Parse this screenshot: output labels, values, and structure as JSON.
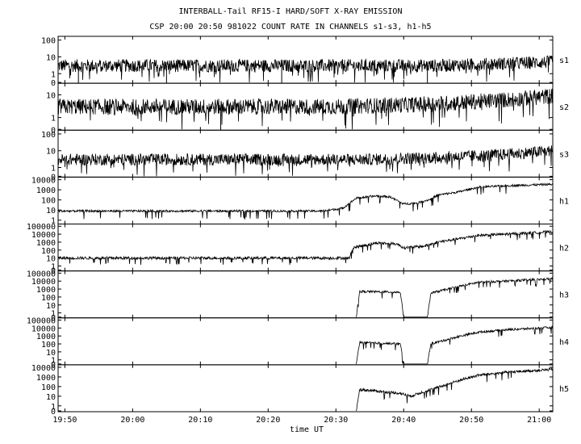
{
  "chart_data": {
    "type": "line",
    "title": "INTERBALL-Tail RF15-I HARD/SOFT X-RAY EMISSION",
    "subtitle": "CSP 20:00 20:50 981022  COUNT RATE IN CHANNELS s1-s3, h1-h5",
    "xlabel": "time UT",
    "x_ticks": [
      "19:50",
      "20:00",
      "20:10",
      "20:20",
      "20:30",
      "20:40",
      "20:50",
      "21:00"
    ],
    "x_tick_minutes": [
      -10,
      0,
      10,
      20,
      30,
      40,
      50,
      60
    ],
    "xlim_minutes": [
      -11,
      62
    ],
    "y_scale": "log",
    "grid": false,
    "panels": [
      {
        "name": "s1",
        "ticks": [
          "0",
          "1",
          "10",
          "100"
        ],
        "ylim": [
          0.3,
          150
        ],
        "series": [
          {
            "minute": -11,
            "value": 3
          },
          {
            "minute": 10,
            "value": 3
          },
          {
            "minute": 30,
            "value": 3
          },
          {
            "minute": 45,
            "value": 3
          },
          {
            "minute": 55,
            "value": 4
          },
          {
            "minute": 62,
            "value": 5
          }
        ],
        "noise": 1.1,
        "spike_down": [
          -8,
          5,
          22,
          43.5
        ]
      },
      {
        "name": "s2",
        "ticks": [
          "0",
          "1",
          "10"
        ],
        "ylim": [
          0.3,
          30
        ],
        "series": [
          {
            "minute": -11,
            "value": 3
          },
          {
            "minute": 10,
            "value": 3
          },
          {
            "minute": 30,
            "value": 3
          },
          {
            "minute": 45,
            "value": 4
          },
          {
            "minute": 55,
            "value": 6
          },
          {
            "minute": 62,
            "value": 9
          }
        ],
        "noise": 1.0,
        "spike_down": [
          13
        ]
      },
      {
        "name": "s3",
        "ticks": [
          "0",
          "1",
          "10",
          "100"
        ],
        "ylim": [
          0.3,
          150
        ],
        "series": [
          {
            "minute": -11,
            "value": 3
          },
          {
            "minute": 10,
            "value": 3
          },
          {
            "minute": 35,
            "value": 3
          },
          {
            "minute": 45,
            "value": 4
          },
          {
            "minute": 55,
            "value": 6
          },
          {
            "minute": 62,
            "value": 10
          }
        ],
        "noise": 1.0,
        "spike_down": []
      },
      {
        "name": "h1",
        "ticks": [
          "1",
          "10",
          "100",
          "1000",
          "10000"
        ],
        "ylim": [
          0.5,
          15000
        ],
        "series": [
          {
            "minute": -11,
            "value": 8
          },
          {
            "minute": 28,
            "value": 8
          },
          {
            "minute": 31,
            "value": 15
          },
          {
            "minute": 33,
            "value": 150
          },
          {
            "minute": 36,
            "value": 250
          },
          {
            "minute": 38,
            "value": 200
          },
          {
            "minute": 40,
            "value": 40
          },
          {
            "minute": 42,
            "value": 50
          },
          {
            "minute": 44,
            "value": 120
          },
          {
            "minute": 45,
            "value": 300
          },
          {
            "minute": 48,
            "value": 600
          },
          {
            "minute": 51,
            "value": 1800
          },
          {
            "minute": 55,
            "value": 2500
          },
          {
            "minute": 62,
            "value": 3500
          }
        ],
        "noise": 0.3,
        "spike_down": []
      },
      {
        "name": "h2",
        "ticks": [
          "0",
          "1",
          "10",
          "100",
          "1000",
          "10000",
          "100000"
        ],
        "ylim": [
          0.3,
          150000
        ],
        "series": [
          {
            "minute": -11,
            "value": 10
          },
          {
            "minute": 32,
            "value": 10
          },
          {
            "minute": 32.5,
            "value": 200
          },
          {
            "minute": 36,
            "value": 800
          },
          {
            "minute": 39,
            "value": 600
          },
          {
            "minute": 40,
            "value": 200
          },
          {
            "minute": 43,
            "value": 300
          },
          {
            "minute": 45,
            "value": 1000
          },
          {
            "minute": 48,
            "value": 2500
          },
          {
            "minute": 51,
            "value": 7000
          },
          {
            "minute": 55,
            "value": 10000
          },
          {
            "minute": 62,
            "value": 20000
          }
        ],
        "noise": 0.5,
        "spike_down": []
      },
      {
        "name": "h3",
        "ticks": [
          "0",
          "1",
          "10",
          "100",
          "1000",
          "10000",
          "100000"
        ],
        "ylim": [
          0.3,
          150000
        ],
        "series": [
          {
            "minute": 33,
            "value": 0.3
          },
          {
            "minute": 33.5,
            "value": 500
          },
          {
            "minute": 39.5,
            "value": 400
          },
          {
            "minute": 40,
            "value": 0.3
          },
          {
            "minute": 43.5,
            "value": 0.3
          },
          {
            "minute": 44,
            "value": 300
          },
          {
            "minute": 48,
            "value": 2000
          },
          {
            "minute": 51,
            "value": 7000
          },
          {
            "minute": 55,
            "value": 10000
          },
          {
            "minute": 62,
            "value": 20000
          }
        ],
        "noise": 0.4,
        "spike_down": []
      },
      {
        "name": "h4",
        "ticks": [
          "0",
          "1",
          "10",
          "100",
          "1000",
          "10000",
          "100000"
        ],
        "ylim": [
          0.3,
          150000
        ],
        "series": [
          {
            "minute": 33,
            "value": 0.3
          },
          {
            "minute": 33.5,
            "value": 150
          },
          {
            "minute": 39.5,
            "value": 100
          },
          {
            "minute": 40,
            "value": 0.3
          },
          {
            "minute": 43.5,
            "value": 0.3
          },
          {
            "minute": 44,
            "value": 100
          },
          {
            "minute": 48,
            "value": 800
          },
          {
            "minute": 51,
            "value": 3000
          },
          {
            "minute": 55,
            "value": 6000
          },
          {
            "minute": 62,
            "value": 12000
          }
        ],
        "noise": 0.4,
        "spike_down": []
      },
      {
        "name": "h5",
        "ticks": [
          "0",
          "1",
          "10",
          "100",
          "1000",
          "10000"
        ],
        "ylim": [
          0.3,
          15000
        ],
        "series": [
          {
            "minute": 33,
            "value": 0.3
          },
          {
            "minute": 33.5,
            "value": 50
          },
          {
            "minute": 39.5,
            "value": 20
          },
          {
            "minute": 41,
            "value": 10
          },
          {
            "minute": 43,
            "value": 30
          },
          {
            "minute": 45,
            "value": 80
          },
          {
            "minute": 48,
            "value": 400
          },
          {
            "minute": 51,
            "value": 1500
          },
          {
            "minute": 55,
            "value": 3000
          },
          {
            "minute": 62,
            "value": 6000
          }
        ],
        "noise": 0.4,
        "spike_down": []
      }
    ]
  }
}
